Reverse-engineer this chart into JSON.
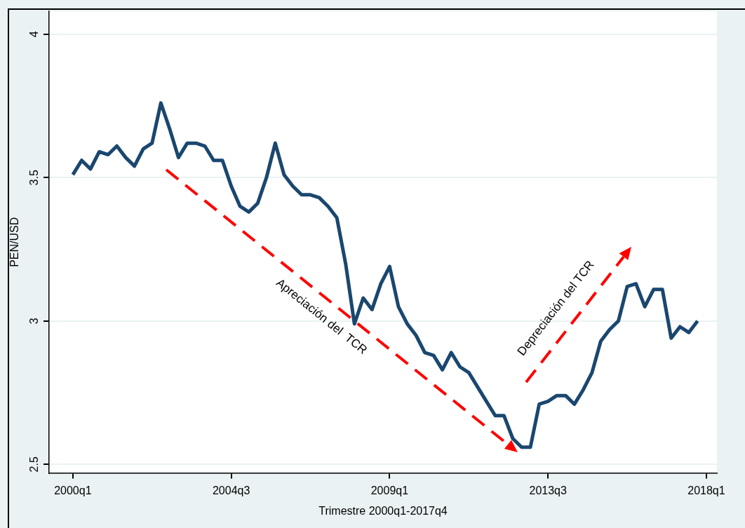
{
  "chart_data": {
    "type": "line",
    "xlabel": "Trimestre 2000q1-2017q4",
    "ylabel": "PEN/USD",
    "categories": [
      "2000q1",
      null,
      null,
      null,
      null,
      null,
      null,
      null,
      null,
      null,
      null,
      null,
      null,
      null,
      null,
      null,
      null,
      null,
      "2004q3",
      null,
      null,
      null,
      null,
      null,
      null,
      null,
      null,
      null,
      null,
      null,
      null,
      null,
      null,
      null,
      null,
      null,
      "2009q1",
      null,
      null,
      null,
      null,
      null,
      null,
      null,
      null,
      null,
      null,
      null,
      null,
      null,
      null,
      null,
      null,
      null,
      "2013q3",
      null,
      null,
      null,
      null,
      null,
      null,
      null,
      null,
      null,
      null,
      null,
      null,
      null,
      null,
      null,
      null,
      null,
      "2018q1"
    ],
    "series": [
      {
        "color": "#1a476f",
        "values": [
          3.51,
          3.56,
          3.53,
          3.59,
          3.58,
          3.61,
          3.57,
          3.54,
          3.6,
          3.62,
          3.76,
          3.67,
          3.57,
          3.62,
          3.62,
          3.61,
          3.56,
          3.56,
          3.47,
          3.4,
          3.38,
          3.41,
          3.5,
          3.62,
          3.51,
          3.47,
          3.44,
          3.44,
          3.43,
          3.4,
          3.36,
          3.2,
          2.99,
          3.08,
          3.04,
          3.13,
          3.19,
          3.05,
          2.99,
          2.95,
          2.89,
          2.88,
          2.83,
          2.89,
          2.84,
          2.82,
          2.77,
          2.72,
          2.67,
          2.67,
          2.59,
          2.56,
          2.56,
          2.71,
          2.72,
          2.74,
          2.74,
          2.71,
          2.76,
          2.82,
          2.93,
          2.97,
          3,
          3.12,
          3.13,
          3.05,
          3.11,
          3.11,
          2.94,
          2.98,
          2.96,
          3,
          null
        ]
      }
    ],
    "ylim": [
      2.47,
      4.08
    ],
    "yticks": [
      2.5,
      3,
      3.5,
      4
    ],
    "grid": "y",
    "line_style": "solid",
    "marker": "none",
    "legend": false,
    "annotations": [
      "Apreciación del  TCR",
      "Depreciación del TCR"
    ]
  }
}
